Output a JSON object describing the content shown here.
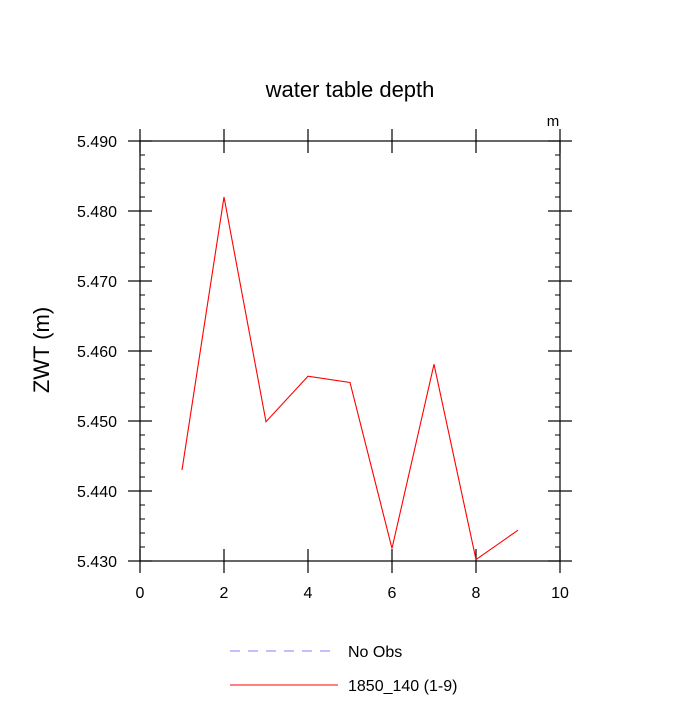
{
  "chart_data": {
    "type": "line",
    "title": "water table depth",
    "units_label": "m",
    "xlabel": "",
    "ylabel": "ZWT  (m)",
    "xlim": [
      0,
      10
    ],
    "ylim": [
      5.43,
      5.49
    ],
    "x_ticks": [
      0,
      2,
      4,
      6,
      8,
      10
    ],
    "x_tick_labels": [
      "0",
      "2",
      "4",
      "6",
      "8",
      "10"
    ],
    "y_ticks": [
      5.43,
      5.44,
      5.45,
      5.46,
      5.47,
      5.48,
      5.49
    ],
    "y_tick_labels": [
      "5.430",
      "5.440",
      "5.450",
      "5.460",
      "5.470",
      "5.480",
      "5.490"
    ],
    "grid": false,
    "legend_position": "bottom",
    "series": [
      {
        "name": "1850_140 (1-9)",
        "color": "#ff0000",
        "dash": "solid",
        "x": [
          1,
          2,
          3,
          4,
          5,
          6,
          7,
          8,
          9
        ],
        "y": [
          5.443,
          5.482,
          5.4499,
          5.4564,
          5.4555,
          5.4318,
          5.4581,
          5.4302,
          5.4344
        ]
      }
    ],
    "legend": [
      {
        "label": "No Obs",
        "color": "#8080ff",
        "dash": "dashed"
      },
      {
        "label": "1850_140 (1-9)",
        "color": "#ff0000",
        "dash": "solid"
      }
    ]
  }
}
